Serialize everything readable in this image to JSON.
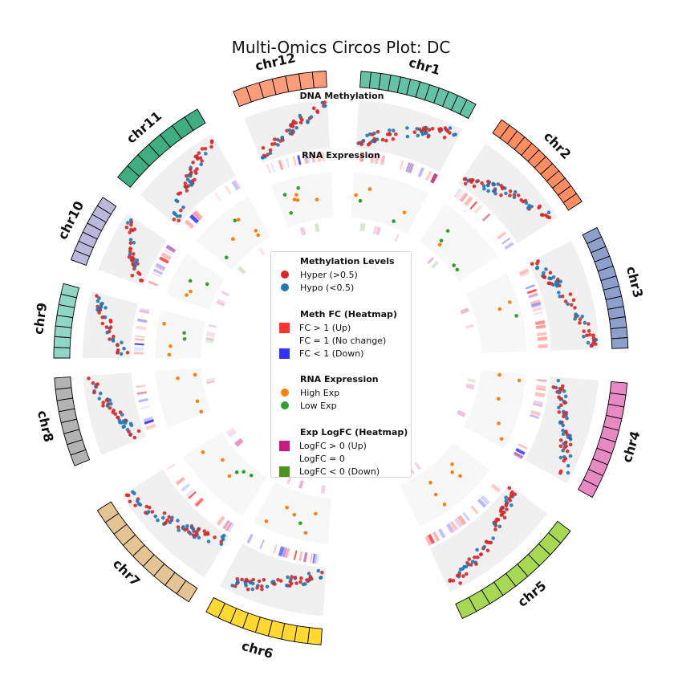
{
  "title": "Multi-Omics Circos Plot: DC",
  "track_labels": {
    "methylation": "DNA Methylation",
    "rna": "RNA Expression"
  },
  "legend": {
    "sections": [
      {
        "title": "Methylation Levels",
        "items": [
          {
            "label": "Hyper (>0.5)",
            "shape": "dot",
            "color": "#d62728"
          },
          {
            "label": "Hypo (<0.5)",
            "shape": "dot",
            "color": "#1f77b4"
          }
        ]
      },
      {
        "title": "Meth FC (Heatmap)",
        "items": [
          {
            "label": "FC > 1 (Up)",
            "shape": "square",
            "color": "#ff3333"
          },
          {
            "label": "FC = 1 (No change)",
            "shape": "square",
            "color": "#ffffff"
          },
          {
            "label": "FC < 1 (Down)",
            "shape": "square",
            "color": "#3333ff"
          }
        ]
      },
      {
        "title": "RNA Expression",
        "items": [
          {
            "label": "High Exp",
            "shape": "dot",
            "color": "#ff7f0e"
          },
          {
            "label": "Low Exp",
            "shape": "dot",
            "color": "#2ca02c"
          }
        ]
      },
      {
        "title": "Exp LogFC (Heatmap)",
        "items": [
          {
            "label": "LogFC > 0 (Up)",
            "shape": "square",
            "color": "#c51b7d"
          },
          {
            "label": "LogFC = 0",
            "shape": "square",
            "color": "#ffffff"
          },
          {
            "label": "LogFC < 0 (Down)",
            "shape": "square",
            "color": "#4d9221"
          }
        ]
      }
    ]
  },
  "chart_data": {
    "type": "circos",
    "chromosomes": [
      {
        "name": "chr1",
        "color": "#66c2a5",
        "cells": 12
      },
      {
        "name": "chr2",
        "color": "#fc8d62",
        "cells": 12
      },
      {
        "name": "chr3",
        "color": "#8da0cb",
        "cells": 12
      },
      {
        "name": "chr4",
        "color": "#e78ac3",
        "cells": 10
      },
      {
        "name": "chr5",
        "color": "#a6d854",
        "cells": 9
      },
      {
        "name": "chr6",
        "color": "#ffd92f",
        "cells": 9
      },
      {
        "name": "chr7",
        "color": "#e5c494",
        "cells": 9
      },
      {
        "name": "chr8",
        "color": "#b3b3b3",
        "cells": 8
      },
      {
        "name": "chr9",
        "color": "#8fd6c4",
        "cells": 7
      },
      {
        "name": "chr10",
        "color": "#bcb8dc",
        "cells": 7
      },
      {
        "name": "chr11",
        "color": "#3fad82",
        "cells": 7
      },
      {
        "name": "chr12",
        "color": "#fc9d7a",
        "cells": 7
      }
    ],
    "tracks": [
      "DNA Methylation",
      "Meth FC (Heatmap)",
      "RNA Expression",
      "Exp LogFC (Heatmap)"
    ],
    "colors": {
      "hyper": "#d62728",
      "hypo": "#1f77b4",
      "high_exp": "#ff7f0e",
      "low_exp": "#2ca02c",
      "fc_up": "#ff3333",
      "fc_down": "#3333ff",
      "logfc_up": "#c51b7d",
      "logfc_down": "#4d9221",
      "track_bg": "#f0f0f0",
      "inner_bg": "#f7f7f7"
    }
  }
}
